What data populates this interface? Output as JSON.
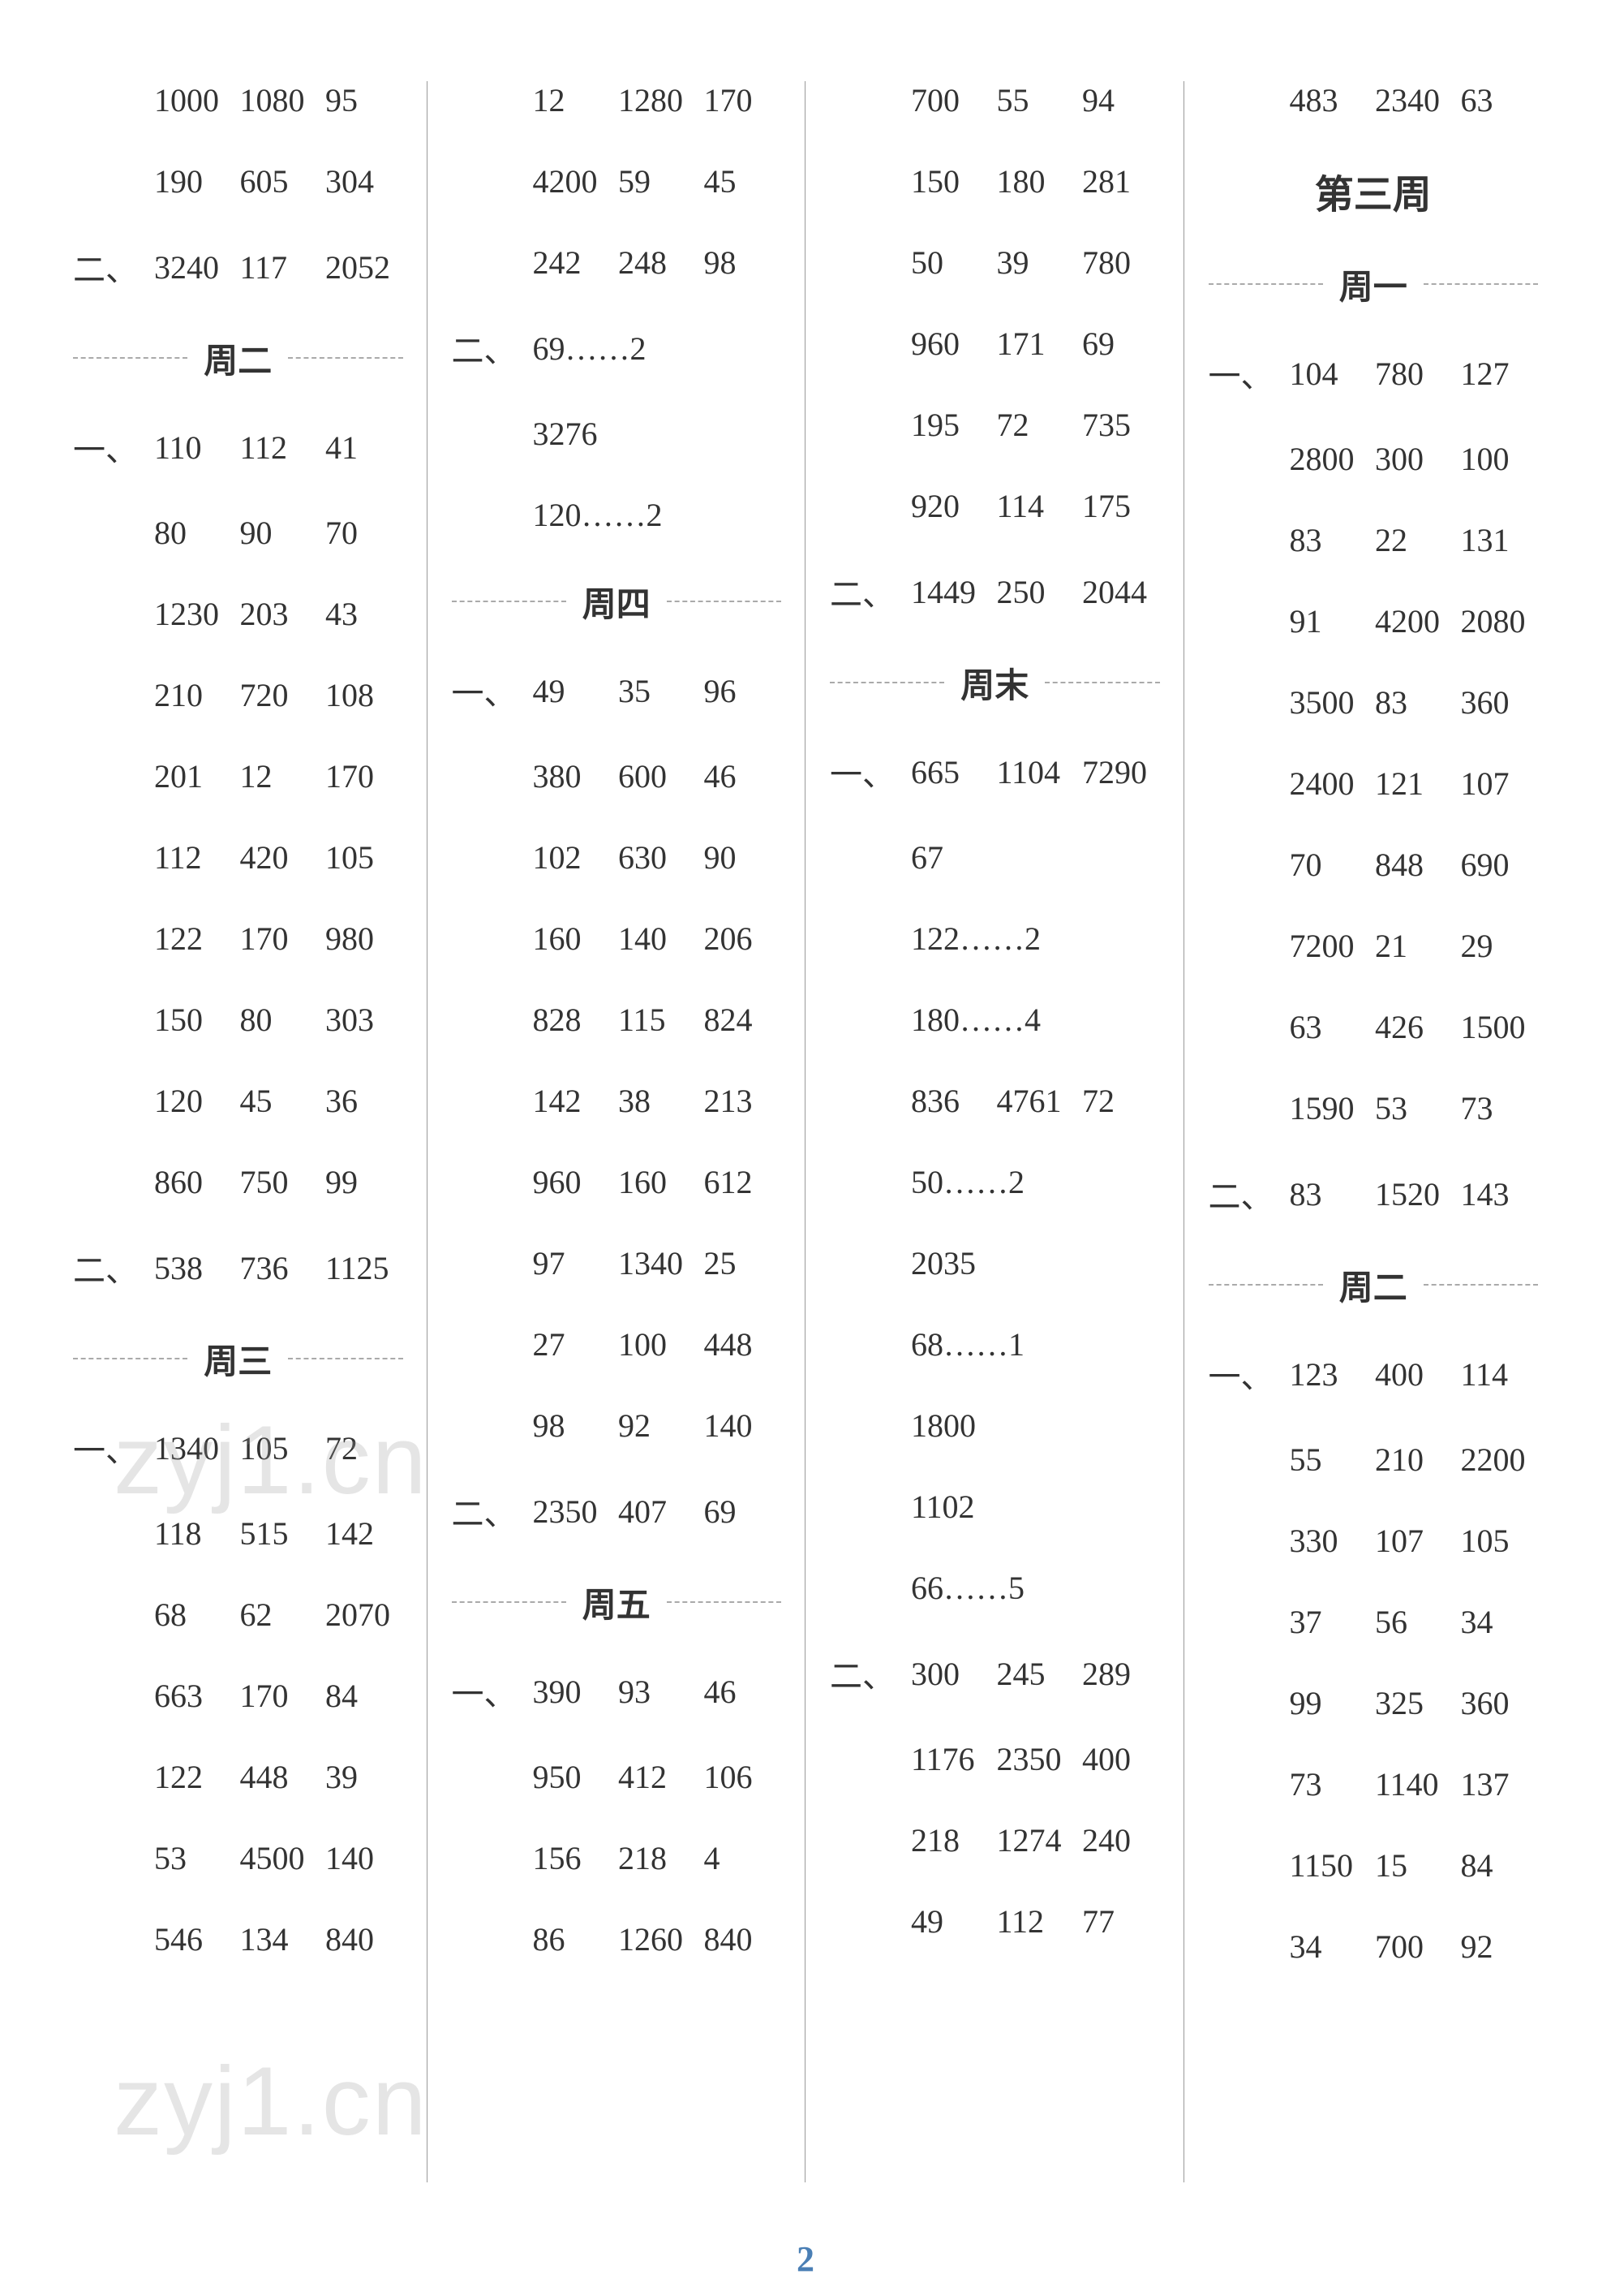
{
  "page_number": "2",
  "watermark_text": "zyj1.cn",
  "columns": [
    {
      "items": [
        {
          "type": "row",
          "prefix": "",
          "values": [
            "1000",
            "1080",
            "95"
          ]
        },
        {
          "type": "row",
          "prefix": "",
          "values": [
            "190",
            "605",
            "304"
          ]
        },
        {
          "type": "row",
          "prefix": "二、",
          "values": [
            "3240",
            "117",
            "2052"
          ]
        },
        {
          "type": "day",
          "label": "周二"
        },
        {
          "type": "row",
          "prefix": "一、",
          "values": [
            "110",
            "112",
            "41"
          ]
        },
        {
          "type": "row",
          "prefix": "",
          "values": [
            "80",
            "90",
            "70"
          ]
        },
        {
          "type": "row",
          "prefix": "",
          "values": [
            "1230",
            "203",
            "43"
          ]
        },
        {
          "type": "row",
          "prefix": "",
          "values": [
            "210",
            "720",
            "108"
          ]
        },
        {
          "type": "row",
          "prefix": "",
          "values": [
            "201",
            "12",
            "170"
          ]
        },
        {
          "type": "row",
          "prefix": "",
          "values": [
            "112",
            "420",
            "105"
          ]
        },
        {
          "type": "row",
          "prefix": "",
          "values": [
            "122",
            "170",
            "980"
          ]
        },
        {
          "type": "row",
          "prefix": "",
          "values": [
            "150",
            "80",
            "303"
          ]
        },
        {
          "type": "row",
          "prefix": "",
          "values": [
            "120",
            "45",
            "36"
          ]
        },
        {
          "type": "row",
          "prefix": "",
          "values": [
            "860",
            "750",
            "99"
          ]
        },
        {
          "type": "row",
          "prefix": "二、",
          "values": [
            "538",
            "736",
            "1125"
          ]
        },
        {
          "type": "day",
          "label": "周三"
        },
        {
          "type": "row",
          "prefix": "一、",
          "values": [
            "1340",
            "105",
            "72"
          ]
        },
        {
          "type": "row",
          "prefix": "",
          "values": [
            "118",
            "515",
            "142"
          ]
        },
        {
          "type": "row",
          "prefix": "",
          "values": [
            "68",
            "62",
            "2070"
          ]
        },
        {
          "type": "row",
          "prefix": "",
          "values": [
            "663",
            "170",
            "84"
          ]
        },
        {
          "type": "row",
          "prefix": "",
          "values": [
            "122",
            "448",
            "39"
          ]
        },
        {
          "type": "row",
          "prefix": "",
          "values": [
            "53",
            "4500",
            "140"
          ]
        },
        {
          "type": "row",
          "prefix": "",
          "values": [
            "546",
            "134",
            "840"
          ]
        }
      ]
    },
    {
      "items": [
        {
          "type": "row",
          "prefix": "",
          "values": [
            "12",
            "1280",
            "170"
          ]
        },
        {
          "type": "row",
          "prefix": "",
          "values": [
            "4200",
            "59",
            "45"
          ]
        },
        {
          "type": "row",
          "prefix": "",
          "values": [
            "242",
            "248",
            "98"
          ]
        },
        {
          "type": "single",
          "prefix": "二、",
          "value": "69……2"
        },
        {
          "type": "single",
          "prefix": "",
          "value": "3276"
        },
        {
          "type": "single",
          "prefix": "",
          "value": "120……2"
        },
        {
          "type": "day",
          "label": "周四"
        },
        {
          "type": "row",
          "prefix": "一、",
          "values": [
            "49",
            "35",
            "96"
          ]
        },
        {
          "type": "row",
          "prefix": "",
          "values": [
            "380",
            "600",
            "46"
          ]
        },
        {
          "type": "row",
          "prefix": "",
          "values": [
            "102",
            "630",
            "90"
          ]
        },
        {
          "type": "row",
          "prefix": "",
          "values": [
            "160",
            "140",
            "206"
          ]
        },
        {
          "type": "row",
          "prefix": "",
          "values": [
            "828",
            "115",
            "824"
          ]
        },
        {
          "type": "row",
          "prefix": "",
          "values": [
            "142",
            "38",
            "213"
          ]
        },
        {
          "type": "row",
          "prefix": "",
          "values": [
            "960",
            "160",
            "612"
          ]
        },
        {
          "type": "row",
          "prefix": "",
          "values": [
            "97",
            "1340",
            "25"
          ]
        },
        {
          "type": "row",
          "prefix": "",
          "values": [
            "27",
            "100",
            "448"
          ]
        },
        {
          "type": "row",
          "prefix": "",
          "values": [
            "98",
            "92",
            "140"
          ]
        },
        {
          "type": "row",
          "prefix": "二、",
          "values": [
            "2350",
            "407",
            "69"
          ]
        },
        {
          "type": "day",
          "label": "周五"
        },
        {
          "type": "row",
          "prefix": "一、",
          "values": [
            "390",
            "93",
            "46"
          ]
        },
        {
          "type": "row",
          "prefix": "",
          "values": [
            "950",
            "412",
            "106"
          ]
        },
        {
          "type": "row",
          "prefix": "",
          "values": [
            "156",
            "218",
            "4"
          ]
        },
        {
          "type": "row",
          "prefix": "",
          "values": [
            "86",
            "1260",
            "840"
          ]
        }
      ]
    },
    {
      "items": [
        {
          "type": "row",
          "prefix": "",
          "values": [
            "700",
            "55",
            "94"
          ]
        },
        {
          "type": "row",
          "prefix": "",
          "values": [
            "150",
            "180",
            "281"
          ]
        },
        {
          "type": "row",
          "prefix": "",
          "values": [
            "50",
            "39",
            "780"
          ]
        },
        {
          "type": "row",
          "prefix": "",
          "values": [
            "960",
            "171",
            "69"
          ]
        },
        {
          "type": "row",
          "prefix": "",
          "values": [
            "195",
            "72",
            "735"
          ]
        },
        {
          "type": "row",
          "prefix": "",
          "values": [
            "920",
            "114",
            "175"
          ]
        },
        {
          "type": "row",
          "prefix": "二、",
          "values": [
            "1449",
            "250",
            "2044"
          ]
        },
        {
          "type": "day",
          "label": "周末"
        },
        {
          "type": "row",
          "prefix": "一、",
          "values": [
            "665",
            "1104",
            "7290"
          ]
        },
        {
          "type": "single",
          "prefix": "",
          "value": "67"
        },
        {
          "type": "single",
          "prefix": "",
          "value": "122……2"
        },
        {
          "type": "single",
          "prefix": "",
          "value": "180……4"
        },
        {
          "type": "row",
          "prefix": "",
          "values": [
            "836",
            "4761",
            "72"
          ]
        },
        {
          "type": "single",
          "prefix": "",
          "value": "50……2"
        },
        {
          "type": "single",
          "prefix": "",
          "value": "2035"
        },
        {
          "type": "single",
          "prefix": "",
          "value": "68……1"
        },
        {
          "type": "single",
          "prefix": "",
          "value": "1800"
        },
        {
          "type": "single",
          "prefix": "",
          "value": "1102"
        },
        {
          "type": "single",
          "prefix": "",
          "value": "66……5"
        },
        {
          "type": "row",
          "prefix": "二、",
          "values": [
            "300",
            "245",
            "289"
          ]
        },
        {
          "type": "row",
          "prefix": "",
          "values": [
            "1176",
            "2350",
            "400"
          ]
        },
        {
          "type": "row",
          "prefix": "",
          "values": [
            "218",
            "1274",
            "240"
          ]
        },
        {
          "type": "row",
          "prefix": "",
          "values": [
            "49",
            "112",
            "77"
          ]
        }
      ]
    },
    {
      "items": [
        {
          "type": "row",
          "prefix": "",
          "values": [
            "483",
            "2340",
            "63"
          ]
        },
        {
          "type": "week",
          "label": "第三周"
        },
        {
          "type": "day",
          "label": "周一"
        },
        {
          "type": "row",
          "prefix": "一、",
          "values": [
            "104",
            "780",
            "127"
          ]
        },
        {
          "type": "row",
          "prefix": "",
          "values": [
            "2800",
            "300",
            "100"
          ]
        },
        {
          "type": "row",
          "prefix": "",
          "values": [
            "83",
            "22",
            "131"
          ]
        },
        {
          "type": "row",
          "prefix": "",
          "values": [
            "91",
            "4200",
            "2080"
          ]
        },
        {
          "type": "row",
          "prefix": "",
          "values": [
            "3500",
            "83",
            "360"
          ]
        },
        {
          "type": "row",
          "prefix": "",
          "values": [
            "2400",
            "121",
            "107"
          ]
        },
        {
          "type": "row",
          "prefix": "",
          "values": [
            "70",
            "848",
            "690"
          ]
        },
        {
          "type": "row",
          "prefix": "",
          "values": [
            "7200",
            "21",
            "29"
          ]
        },
        {
          "type": "row",
          "prefix": "",
          "values": [
            "63",
            "426",
            "1500"
          ]
        },
        {
          "type": "row",
          "prefix": "",
          "values": [
            "1590",
            "53",
            "73"
          ]
        },
        {
          "type": "row",
          "prefix": "二、",
          "values": [
            "83",
            "1520",
            "143"
          ]
        },
        {
          "type": "day",
          "label": "周二"
        },
        {
          "type": "row",
          "prefix": "一、",
          "values": [
            "123",
            "400",
            "114"
          ]
        },
        {
          "type": "row",
          "prefix": "",
          "values": [
            "55",
            "210",
            "2200"
          ]
        },
        {
          "type": "row",
          "prefix": "",
          "values": [
            "330",
            "107",
            "105"
          ]
        },
        {
          "type": "row",
          "prefix": "",
          "values": [
            "37",
            "56",
            "34"
          ]
        },
        {
          "type": "row",
          "prefix": "",
          "values": [
            "99",
            "325",
            "360"
          ]
        },
        {
          "type": "row",
          "prefix": "",
          "values": [
            "73",
            "1140",
            "137"
          ]
        },
        {
          "type": "row",
          "prefix": "",
          "values": [
            "1150",
            "15",
            "84"
          ]
        },
        {
          "type": "row",
          "prefix": "",
          "values": [
            "34",
            "700",
            "92"
          ]
        }
      ]
    }
  ]
}
